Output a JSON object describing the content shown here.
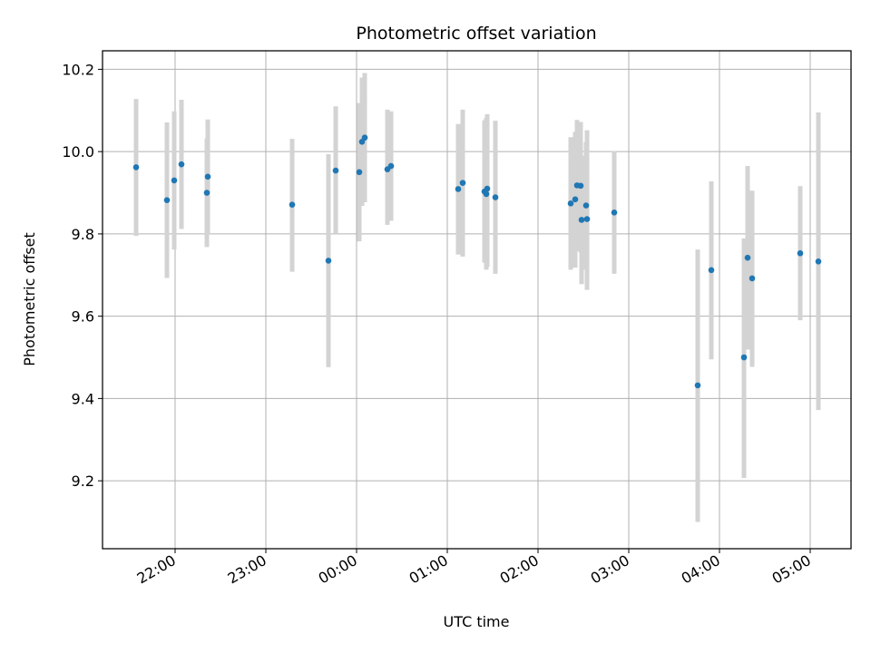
{
  "chart_data": {
    "type": "scatter",
    "title": "Photometric offset variation",
    "xlabel": "UTC time",
    "ylabel": "Photometric offset",
    "grid": true,
    "xlim": [
      21.2,
      29.45
    ],
    "ylim": [
      9.035,
      10.245
    ],
    "x_ticks": [
      {
        "value": 22,
        "label": "22:00"
      },
      {
        "value": 23,
        "label": "23:00"
      },
      {
        "value": 24,
        "label": "00:00"
      },
      {
        "value": 25,
        "label": "01:00"
      },
      {
        "value": 26,
        "label": "02:00"
      },
      {
        "value": 27,
        "label": "03:00"
      },
      {
        "value": 28,
        "label": "04:00"
      },
      {
        "value": 29,
        "label": "05:00"
      }
    ],
    "y_ticks": [
      {
        "value": 9.2,
        "label": "9.2"
      },
      {
        "value": 9.4,
        "label": "9.4"
      },
      {
        "value": 9.6,
        "label": "9.6"
      },
      {
        "value": 9.8,
        "label": "9.8"
      },
      {
        "value": 10.0,
        "label": "10.0"
      },
      {
        "value": 10.2,
        "label": "10.2"
      }
    ],
    "colors": {
      "point": "#1f77b4",
      "errorbar": "#d3d3d3"
    },
    "series": [
      {
        "name": "offset",
        "points": [
          {
            "t": 21.57,
            "y": 9.962,
            "lo": 9.795,
            "hi": 10.128
          },
          {
            "t": 21.91,
            "y": 9.882,
            "lo": 9.693,
            "hi": 10.071
          },
          {
            "t": 21.99,
            "y": 9.93,
            "lo": 9.762,
            "hi": 10.098
          },
          {
            "t": 22.07,
            "y": 9.969,
            "lo": 9.812,
            "hi": 10.126
          },
          {
            "t": 22.35,
            "y": 9.9,
            "lo": 9.768,
            "hi": 10.032
          },
          {
            "t": 22.36,
            "y": 9.939,
            "lo": 9.8,
            "hi": 10.078
          },
          {
            "t": 23.29,
            "y": 9.871,
            "lo": 9.708,
            "hi": 10.031
          },
          {
            "t": 23.69,
            "y": 9.735,
            "lo": 9.476,
            "hi": 9.994
          },
          {
            "t": 23.77,
            "y": 9.954,
            "lo": 9.8,
            "hi": 10.11
          },
          {
            "t": 24.03,
            "y": 9.95,
            "lo": 9.782,
            "hi": 10.118
          },
          {
            "t": 24.06,
            "y": 10.024,
            "lo": 9.868,
            "hi": 10.18
          },
          {
            "t": 24.09,
            "y": 10.034,
            "lo": 9.877,
            "hi": 10.191
          },
          {
            "t": 24.34,
            "y": 9.957,
            "lo": 9.822,
            "hi": 10.102
          },
          {
            "t": 24.38,
            "y": 9.965,
            "lo": 9.832,
            "hi": 10.098
          },
          {
            "t": 25.12,
            "y": 9.909,
            "lo": 9.75,
            "hi": 10.067
          },
          {
            "t": 25.17,
            "y": 9.924,
            "lo": 9.745,
            "hi": 10.102
          },
          {
            "t": 25.41,
            "y": 9.903,
            "lo": 9.73,
            "hi": 10.076
          },
          {
            "t": 25.43,
            "y": 9.897,
            "lo": 9.713,
            "hi": 10.082
          },
          {
            "t": 25.44,
            "y": 9.91,
            "lo": 9.72,
            "hi": 10.091
          },
          {
            "t": 25.53,
            "y": 9.889,
            "lo": 9.703,
            "hi": 10.075
          },
          {
            "t": 26.36,
            "y": 9.874,
            "lo": 9.713,
            "hi": 10.035
          },
          {
            "t": 26.41,
            "y": 9.884,
            "lo": 9.718,
            "hi": 10.048
          },
          {
            "t": 26.43,
            "y": 9.918,
            "lo": 9.758,
            "hi": 10.077
          },
          {
            "t": 26.47,
            "y": 9.917,
            "lo": 9.755,
            "hi": 10.072
          },
          {
            "t": 26.48,
            "y": 9.834,
            "lo": 9.678,
            "hi": 9.99
          },
          {
            "t": 26.53,
            "y": 9.869,
            "lo": 9.713,
            "hi": 10.023
          },
          {
            "t": 26.54,
            "y": 9.836,
            "lo": 9.664,
            "hi": 10.052
          },
          {
            "t": 26.84,
            "y": 9.852,
            "lo": 9.703,
            "hi": 10.001
          },
          {
            "t": 27.76,
            "y": 9.432,
            "lo": 9.1,
            "hi": 9.762
          },
          {
            "t": 27.91,
            "y": 9.712,
            "lo": 9.495,
            "hi": 9.928
          },
          {
            "t": 28.27,
            "y": 9.5,
            "lo": 9.207,
            "hi": 9.789
          },
          {
            "t": 28.31,
            "y": 9.742,
            "lo": 9.519,
            "hi": 9.965
          },
          {
            "t": 28.36,
            "y": 9.692,
            "lo": 9.477,
            "hi": 9.905
          },
          {
            "t": 28.89,
            "y": 9.753,
            "lo": 9.59,
            "hi": 9.916
          },
          {
            "t": 29.09,
            "y": 9.733,
            "lo": 9.372,
            "hi": 10.095
          }
        ]
      }
    ]
  }
}
